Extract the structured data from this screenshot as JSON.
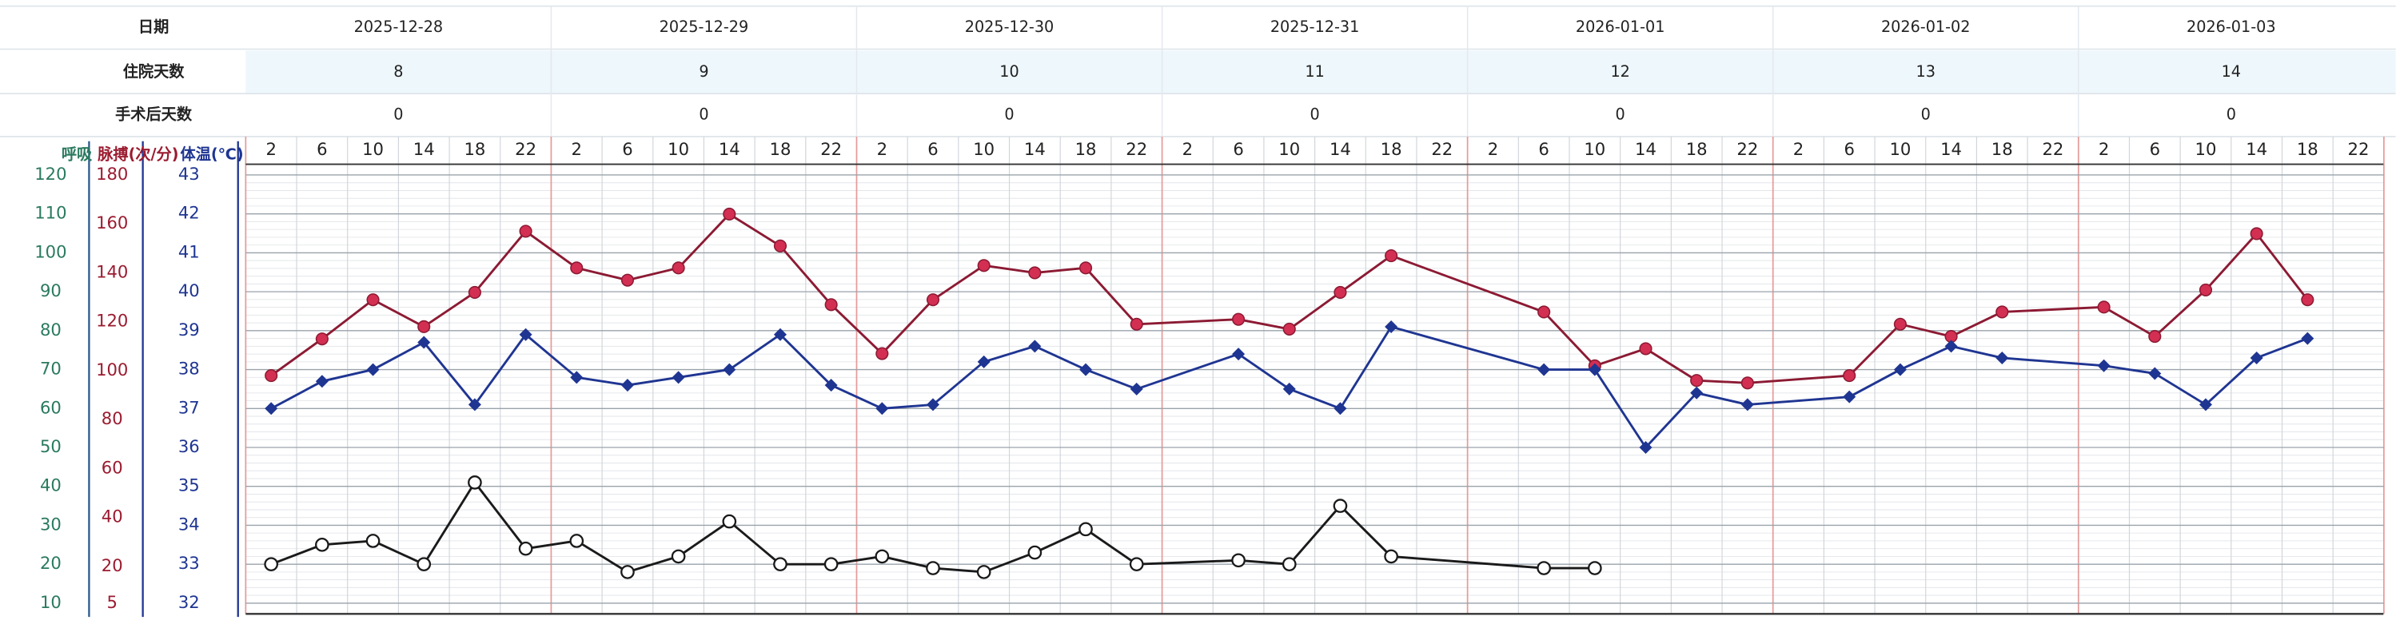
{
  "header": {
    "rows": [
      {
        "label": "日期",
        "values": [
          "2025-12-28",
          "2025-12-29",
          "2025-12-30",
          "2025-12-31",
          "2026-01-01",
          "2026-01-02",
          "2026-01-03"
        ]
      },
      {
        "label": "住院天数",
        "values": [
          8,
          9,
          10,
          11,
          12,
          13,
          14
        ]
      },
      {
        "label": "手术后天数",
        "values": [
          0,
          0,
          0,
          0,
          0,
          0,
          0
        ]
      }
    ]
  },
  "chart_data": {
    "type": "line",
    "categories": [
      2,
      6,
      10,
      14,
      18,
      22,
      2,
      6,
      10,
      14,
      18,
      22,
      2,
      6,
      10,
      14,
      18,
      22,
      2,
      6,
      10,
      14,
      18,
      22,
      2,
      6,
      10,
      14,
      18,
      22,
      2,
      6,
      10,
      14,
      18,
      22,
      2,
      6,
      10,
      14,
      18,
      22
    ],
    "grid": true,
    "series": [
      {
        "name": "呼吸",
        "color": "#1a1a1a",
        "axis_color": "#2a7a5e",
        "marker": "open-circle",
        "ylim": [
          10,
          120
        ],
        "yticks": [
          10,
          20,
          30,
          40,
          50,
          60,
          70,
          80,
          90,
          100,
          110,
          120
        ],
        "values": [
          20,
          25,
          26,
          20,
          41,
          24,
          26,
          18,
          22,
          31,
          20,
          20,
          22,
          19,
          18,
          23,
          29,
          20,
          null,
          21,
          20,
          35,
          22,
          null,
          null,
          19,
          19,
          null,
          null,
          null,
          null,
          null,
          null,
          null,
          null,
          null,
          null,
          null,
          null,
          null,
          null,
          null
        ]
      },
      {
        "name": "脉搏(次/分)",
        "color": "#8c1a33",
        "axis_color": "#9b1b30",
        "marker": "circle",
        "marker_color": "#d32f52",
        "ylim": [
          5,
          180
        ],
        "yticks": [
          5,
          20,
          40,
          60,
          80,
          100,
          120,
          140,
          160,
          180
        ],
        "values": [
          98,
          113,
          129,
          118,
          132,
          157,
          142,
          137,
          142,
          164,
          151,
          127,
          107,
          129,
          143,
          140,
          142,
          119,
          null,
          121,
          117,
          132,
          147,
          null,
          null,
          124,
          102,
          109,
          96,
          95,
          null,
          98,
          119,
          114,
          124,
          null,
          126,
          114,
          133,
          156,
          129,
          null
        ]
      },
      {
        "name": "体温(℃)",
        "color": "#1f3592",
        "axis_color": "#1f3592",
        "marker": "diamond",
        "ylim": [
          32,
          43
        ],
        "yticks": [
          32,
          33,
          34,
          35,
          36,
          37,
          38,
          39,
          40,
          41,
          42,
          43
        ],
        "values": [
          37.0,
          37.7,
          38.0,
          38.7,
          37.1,
          38.9,
          37.8,
          37.6,
          37.8,
          38.0,
          38.9,
          37.6,
          37.0,
          37.1,
          38.2,
          38.6,
          38.0,
          37.5,
          null,
          38.4,
          37.5,
          37.0,
          39.1,
          null,
          null,
          38.0,
          38.0,
          36.0,
          37.4,
          37.1,
          null,
          37.3,
          38.0,
          38.6,
          38.3,
          null,
          38.1,
          37.9,
          37.1,
          38.3,
          38.8,
          null
        ]
      }
    ]
  }
}
